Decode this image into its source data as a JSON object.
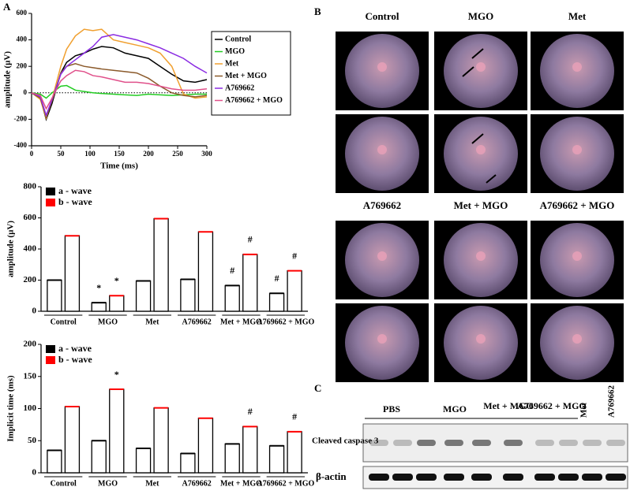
{
  "panel_labels": [
    "A",
    "B",
    "C"
  ],
  "chart_data": [
    {
      "type": "line",
      "xlabel": "Time (ms)",
      "ylabel": "amplitude (µV)",
      "x": [
        0,
        15,
        25,
        35,
        50,
        60,
        75,
        90,
        105,
        120,
        140,
        160,
        180,
        200,
        220,
        240,
        260,
        280,
        300
      ],
      "xlim": [
        0,
        300
      ],
      "xticks": [
        0,
        50,
        100,
        150,
        200,
        250,
        300
      ],
      "ylim": [
        -400,
        600
      ],
      "yticks": [
        -400,
        -200,
        0,
        200,
        400,
        600
      ],
      "series": [
        {
          "name": "Control",
          "color": "#000000",
          "values": [
            0,
            -40,
            -200,
            -80,
            150,
            230,
            280,
            300,
            330,
            350,
            340,
            300,
            280,
            260,
            200,
            140,
            90,
            80,
            100
          ]
        },
        {
          "name": "MGO",
          "color": "#22cc22",
          "values": [
            0,
            -10,
            -40,
            0,
            50,
            55,
            20,
            10,
            0,
            -5,
            -10,
            -15,
            -20,
            -10,
            -15,
            -20,
            -15,
            -10,
            -10
          ]
        },
        {
          "name": "Met",
          "color": "#f0a030",
          "values": [
            0,
            -50,
            -190,
            -50,
            200,
            330,
            430,
            480,
            470,
            480,
            400,
            380,
            360,
            340,
            300,
            200,
            -10,
            -40,
            -30
          ]
        },
        {
          "name": "Met + MGO",
          "color": "#8b5a2b",
          "values": [
            0,
            -40,
            -180,
            -60,
            150,
            200,
            220,
            200,
            190,
            180,
            170,
            160,
            150,
            110,
            50,
            0,
            -20,
            -30,
            -20
          ]
        },
        {
          "name": "A769662",
          "color": "#8a2be2",
          "values": [
            0,
            -30,
            -170,
            -50,
            140,
            200,
            250,
            300,
            350,
            420,
            440,
            420,
            400,
            370,
            340,
            300,
            260,
            200,
            150
          ]
        },
        {
          "name": "A769662 + MGO",
          "color": "#e0508a",
          "values": [
            0,
            -20,
            -120,
            -40,
            90,
            130,
            170,
            160,
            130,
            120,
            100,
            80,
            80,
            70,
            50,
            30,
            20,
            20,
            30
          ]
        }
      ]
    },
    {
      "type": "bar",
      "ylabel": "amplitude (µV)",
      "categories": [
        "Control",
        "MGO",
        "Met",
        "A769662",
        "Met + MGO",
        "A769662 + MGO"
      ],
      "ylim": [
        0,
        800
      ],
      "yticks": [
        0,
        200,
        400,
        600,
        800
      ],
      "series": [
        {
          "name": "a - wave",
          "color": "#000000",
          "values": [
            200,
            55,
            195,
            205,
            165,
            115
          ]
        },
        {
          "name": "b - wave",
          "color": "#ff0000",
          "values": [
            485,
            100,
            595,
            510,
            365,
            260
          ]
        }
      ],
      "annotations": [
        {
          "text": "*",
          "category": 1,
          "series": 0
        },
        {
          "text": "*",
          "category": 1,
          "series": 1
        },
        {
          "text": "#",
          "category": 4,
          "series": 0
        },
        {
          "text": "#",
          "category": 4,
          "series": 1
        },
        {
          "text": "#",
          "category": 5,
          "series": 0
        },
        {
          "text": "#",
          "category": 5,
          "series": 1
        }
      ]
    },
    {
      "type": "bar",
      "ylabel": "Implicit time (ms)",
      "categories": [
        "Control",
        "MGO",
        "Met",
        "A769662",
        "Met + MGO",
        "A769662 + MGO"
      ],
      "ylim": [
        0,
        200
      ],
      "yticks": [
        0,
        50,
        100,
        150,
        200
      ],
      "series": [
        {
          "name": "a - wave",
          "color": "#000000",
          "values": [
            35,
            50,
            38,
            30,
            45,
            42
          ]
        },
        {
          "name": "b - wave",
          "color": "#ff0000",
          "values": [
            103,
            130,
            101,
            85,
            72,
            64
          ]
        }
      ],
      "annotations": [
        {
          "text": "*",
          "category": 1,
          "series": 1
        },
        {
          "text": "#",
          "category": 4,
          "series": 1
        },
        {
          "text": "#",
          "category": 5,
          "series": 1
        }
      ]
    }
  ],
  "fundus": {
    "labels": [
      "Control",
      "MGO",
      "Met",
      "A769662",
      "Met + MGO",
      "A769662 + MGO"
    ]
  },
  "blot": {
    "lanes": [
      "PBS",
      "MGO",
      "Met + MGO",
      "A769662 + MGO",
      "Met",
      "A769662"
    ],
    "rows": [
      "Cleaved caspase 3",
      "β-actin"
    ]
  }
}
